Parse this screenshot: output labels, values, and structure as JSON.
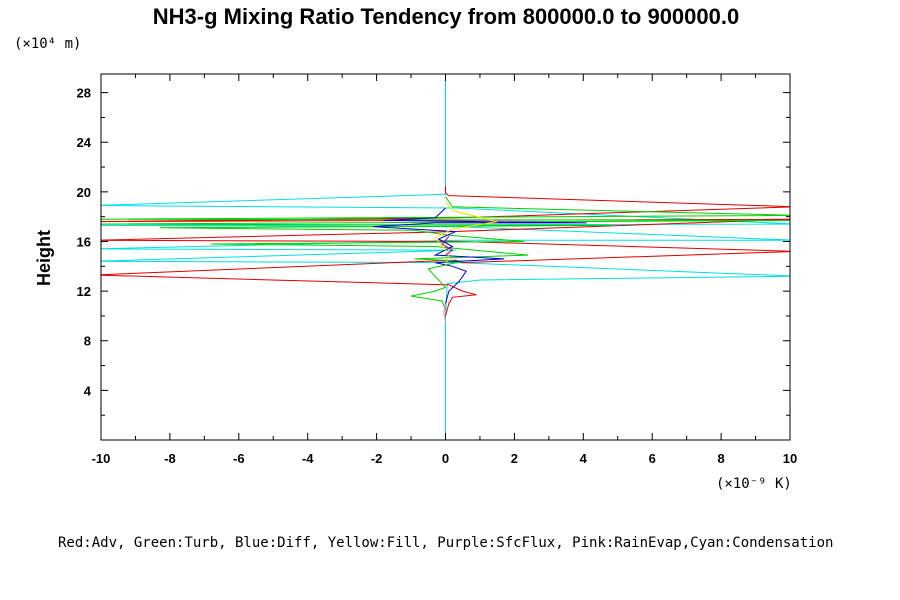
{
  "chart_data": {
    "type": "line",
    "title": "NH3-g Mixing Ratio Tendency from 800000.0 to 900000.0",
    "xlabel": "",
    "ylabel": "Height",
    "x_unit": "(×10⁻⁹ K)",
    "y_unit": "(×10⁴ m)",
    "xlim": [
      -10,
      10
    ],
    "ylim": [
      0,
      29.5
    ],
    "xticks": [
      -10,
      -8,
      -6,
      -4,
      -2,
      0,
      2,
      4,
      6,
      8,
      10
    ],
    "yticks": [
      4,
      8,
      12,
      16,
      20,
      24,
      28
    ],
    "legend_text": "Red:Adv, Green:Turb, Blue:Diff, Yellow:Fill, Purple:SfcFlux, Pink:RainEvap,Cyan:Condensation",
    "series": [
      {
        "name": "Condensation",
        "color": "#00e0e0",
        "points": [
          [
            0,
            0
          ],
          [
            0,
            10
          ],
          [
            0.05,
            12.6
          ],
          [
            1,
            12.9
          ],
          [
            10.2,
            13.2
          ],
          [
            0.3,
            14.3
          ],
          [
            -10.2,
            14.4
          ],
          [
            0.3,
            15.3
          ],
          [
            -10.2,
            15.4
          ],
          [
            0.4,
            16.1
          ],
          [
            10.2,
            16.1
          ],
          [
            0.3,
            17.2
          ],
          [
            -10.2,
            17.3
          ],
          [
            10.2,
            17.4
          ],
          [
            0.3,
            18.7
          ],
          [
            -10.2,
            18.9
          ],
          [
            0,
            19.8
          ],
          [
            0,
            24
          ],
          [
            0,
            29.5
          ]
        ]
      },
      {
        "name": "Adv",
        "color": "#e00000",
        "points": [
          [
            0,
            10
          ],
          [
            0.1,
            11
          ],
          [
            0.2,
            11.5
          ],
          [
            0.9,
            11.7
          ],
          [
            0.5,
            12
          ],
          [
            0.1,
            12.5
          ],
          [
            -10.2,
            13.3
          ],
          [
            0.3,
            14.5
          ],
          [
            0.5,
            14.3
          ],
          [
            10.2,
            15.2
          ],
          [
            0.4,
            16
          ],
          [
            -10.2,
            16.1
          ],
          [
            0.2,
            16.8
          ],
          [
            10.2,
            17.8
          ],
          [
            -10.2,
            17.6
          ],
          [
            0.3,
            17.9
          ],
          [
            10.2,
            18.8
          ],
          [
            0.1,
            19.7
          ],
          [
            0,
            19.9
          ],
          [
            0,
            20.5
          ]
        ]
      },
      {
        "name": "Turb",
        "color": "#00d000",
        "points": [
          [
            0,
            10.5
          ],
          [
            -0.1,
            11.2
          ],
          [
            -1,
            11.6
          ],
          [
            -0.3,
            12
          ],
          [
            0,
            12.3
          ],
          [
            -0.5,
            13.8
          ],
          [
            0.5,
            14.4
          ],
          [
            -0.9,
            14.6
          ],
          [
            2.4,
            14.9
          ],
          [
            -0.3,
            15.6
          ],
          [
            -6.8,
            15.8
          ],
          [
            2.3,
            16
          ],
          [
            0.1,
            16.5
          ],
          [
            -0.9,
            16.9
          ],
          [
            -8.3,
            17.1
          ],
          [
            4.8,
            17.3
          ],
          [
            -10.2,
            17.4
          ],
          [
            10.2,
            17.7
          ],
          [
            -10.2,
            17.8
          ],
          [
            10.2,
            18.1
          ],
          [
            0.2,
            18.8
          ],
          [
            0,
            19.6
          ]
        ]
      },
      {
        "name": "Diff",
        "color": "#0000d0",
        "points": [
          [
            0,
            11
          ],
          [
            0.1,
            12
          ],
          [
            0.4,
            12.8
          ],
          [
            0.6,
            13.6
          ],
          [
            0.2,
            14
          ],
          [
            -0.3,
            14.3
          ],
          [
            1.7,
            14.6
          ],
          [
            -0.3,
            14.9
          ],
          [
            0.2,
            15.6
          ],
          [
            -0.2,
            16.2
          ],
          [
            0.3,
            16.8
          ],
          [
            -2.1,
            17.2
          ],
          [
            -0.3,
            17.5
          ],
          [
            4.1,
            17.5
          ],
          [
            -1.8,
            17.7
          ],
          [
            -0.3,
            17.9
          ],
          [
            0,
            18.7
          ]
        ]
      },
      {
        "name": "Fill",
        "color": "#f0e000",
        "points": [
          [
            0,
            14
          ],
          [
            0.1,
            15
          ],
          [
            -0.3,
            16.3
          ],
          [
            0.2,
            17
          ],
          [
            1.5,
            17.6
          ],
          [
            0.2,
            18.5
          ],
          [
            0,
            19.2
          ]
        ]
      },
      {
        "name": "SfcFlux",
        "color": "#a000a0",
        "points": [
          [
            0,
            14.9
          ],
          [
            0.2,
            15.3
          ],
          [
            -0.1,
            15.8
          ],
          [
            0.1,
            16.4
          ]
        ]
      },
      {
        "name": "RainEvap",
        "color": "#ff80c0",
        "points": [
          [
            0,
            9.5
          ],
          [
            -0.05,
            10.2
          ],
          [
            0,
            11
          ]
        ]
      }
    ]
  }
}
